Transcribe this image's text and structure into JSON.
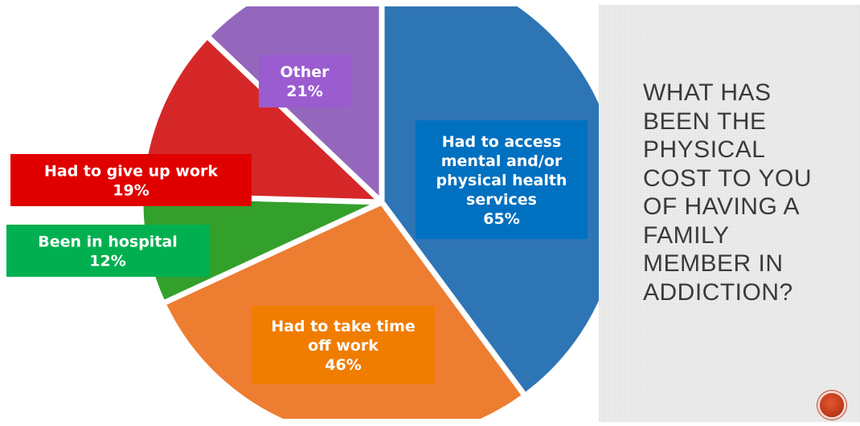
{
  "slide": {
    "title": "WHAT HAS\nBEEN THE\nPHYSICAL\nCOST TO YOU\nOF HAVING A\nFAMILY\nMEMBER IN\nADDICTION?"
  },
  "chart_data": {
    "type": "pie",
    "unit": "%",
    "slices": [
      {
        "label_lines": [
          "Had to access",
          "mental and/or",
          "physical health",
          "services",
          "65%"
        ],
        "value": 65,
        "color": "#2e75b6",
        "label_bg": "#0070c0"
      },
      {
        "label_lines": [
          "Had to take time",
          "off work",
          "46%"
        ],
        "value": 46,
        "color": "#ed7d31",
        "label_bg": "#f07c00"
      },
      {
        "label_lines": [
          "Been in hospital",
          "12%"
        ],
        "value": 12,
        "color": "#33a02c",
        "label_bg": "#00b050"
      },
      {
        "label_lines": [
          "Had to give up work",
          "19%"
        ],
        "value": 19,
        "color": "#d62728",
        "label_bg": "#e00000"
      },
      {
        "label_lines": [
          "Other",
          "21%"
        ],
        "value": 21,
        "color": "#9467bd",
        "label_bg": "#9a5ccf"
      }
    ]
  }
}
